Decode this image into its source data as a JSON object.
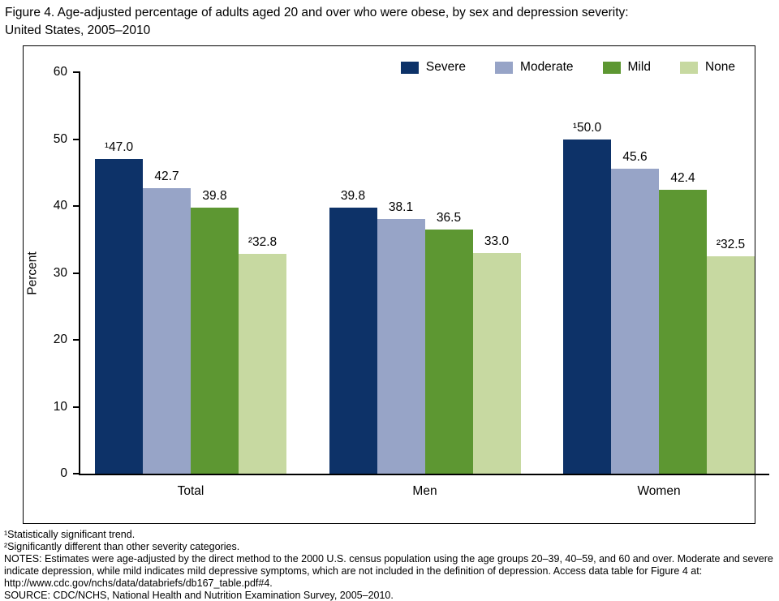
{
  "header": {
    "title_line1": "Figure 4. Age-adjusted percentage of adults aged 20 and over who were obese, by sex and depression severity:",
    "title_line2": "United States, 2005–2010"
  },
  "chart_data": {
    "type": "bar",
    "title": "Figure 4. Age-adjusted percentage of adults aged 20 and over who were obese, by sex and depression severity: United States, 2005–2010",
    "categories": [
      "Total",
      "Men",
      "Women"
    ],
    "series": [
      {
        "name": "Severe",
        "color": "#0d3268",
        "values": [
          47.0,
          39.8,
          50.0
        ],
        "labels": [
          "¹47.0",
          "39.8",
          "¹50.0"
        ]
      },
      {
        "name": "Moderate",
        "color": "#97a4c7",
        "values": [
          42.7,
          38.1,
          45.6
        ],
        "labels": [
          "42.7",
          "38.1",
          "45.6"
        ]
      },
      {
        "name": "Mild",
        "color": "#5d9732",
        "values": [
          39.8,
          36.5,
          42.4
        ],
        "labels": [
          "39.8",
          "36.5",
          "42.4"
        ]
      },
      {
        "name": "None",
        "color": "#c7d9a1",
        "values": [
          32.8,
          33.0,
          32.5
        ],
        "labels": [
          "²32.8",
          "33.0",
          "²32.5"
        ]
      }
    ],
    "xlabel": "",
    "ylabel": "Percent",
    "ylim": [
      0,
      60
    ],
    "yticks": [
      0,
      10,
      20,
      30,
      40,
      50,
      60
    ],
    "grid": false,
    "legend_position": "top-right"
  },
  "footnotes": {
    "lines": [
      "¹Statistically significant trend.",
      "²Significantly different than other severity categories.",
      "NOTES: Estimates were age-adjusted by the direct method to the 2000 U.S. census population using the age groups 20–39, 40–59, and 60 and over. Moderate and severe indicate depression, while mild indicates mild depressive symptoms, which are not included in the definition of depression. Access data table for Figure 4 at: http://www.cdc.gov/nchs/data/databriefs/db167_table.pdf#4.",
      "SOURCE: CDC/NCHS, National Health and Nutrition Examination Survey, 2005–2010."
    ]
  }
}
